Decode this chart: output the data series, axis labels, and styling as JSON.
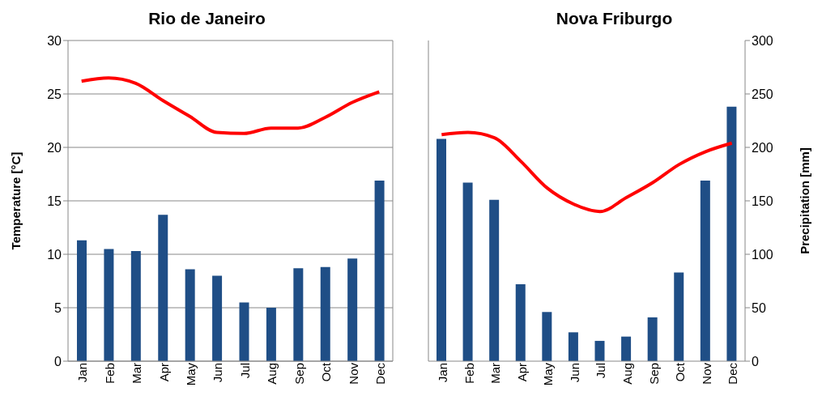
{
  "chart_data": [
    {
      "type": "bar",
      "title": "Rio de Janeiro",
      "ylabel": "Temperature [°C]",
      "categories": [
        "Jan",
        "Feb",
        "Mar",
        "Apr",
        "May",
        "Jun",
        "Jul",
        "Aug",
        "Sep",
        "Oct",
        "Nov",
        "Dec"
      ],
      "series": [
        {
          "axis": "y2",
          "color": "#1f4e86",
          "values": [
            113,
            105,
            103,
            137,
            86,
            80,
            55,
            50,
            87,
            88,
            96,
            169
          ]
        },
        {
          "type": "line",
          "color": "#ff0000",
          "values": [
            26.2,
            26.5,
            26.0,
            24.4,
            22.9,
            21.4,
            21.3,
            21.8,
            21.8,
            22.8,
            24.2,
            25.2
          ]
        }
      ],
      "ylim": [
        0,
        30
      ],
      "yticks": [
        0,
        5,
        10,
        15,
        20,
        25,
        30
      ],
      "y2lim": [
        0,
        300
      ],
      "grid": "y",
      "marker": "none",
      "line_style": "solid",
      "legend": false
    },
    {
      "type": "bar",
      "title": "Nova Friburgo",
      "y2label": "Precipitation [mm]",
      "categories": [
        "Jan",
        "Feb",
        "Mar",
        "Apr",
        "May",
        "Jun",
        "Jul",
        "Aug",
        "Sep",
        "Oct",
        "Nov",
        "Dec"
      ],
      "series": [
        {
          "axis": "y2",
          "color": "#1f4e86",
          "values": [
            208,
            167,
            151,
            72,
            46,
            27,
            19,
            23,
            41,
            83,
            169,
            238
          ]
        },
        {
          "type": "line",
          "color": "#ff0000",
          "values": [
            21.2,
            21.4,
            20.9,
            18.7,
            16.2,
            14.7,
            14.0,
            15.3,
            16.7,
            18.4,
            19.6,
            20.4
          ]
        }
      ],
      "ylim": [
        0,
        30
      ],
      "y2lim": [
        0,
        300
      ],
      "y2ticks": [
        0,
        50,
        100,
        150,
        200,
        250,
        300
      ],
      "grid": "y",
      "marker": "none",
      "line_style": "solid",
      "legend": false
    }
  ]
}
